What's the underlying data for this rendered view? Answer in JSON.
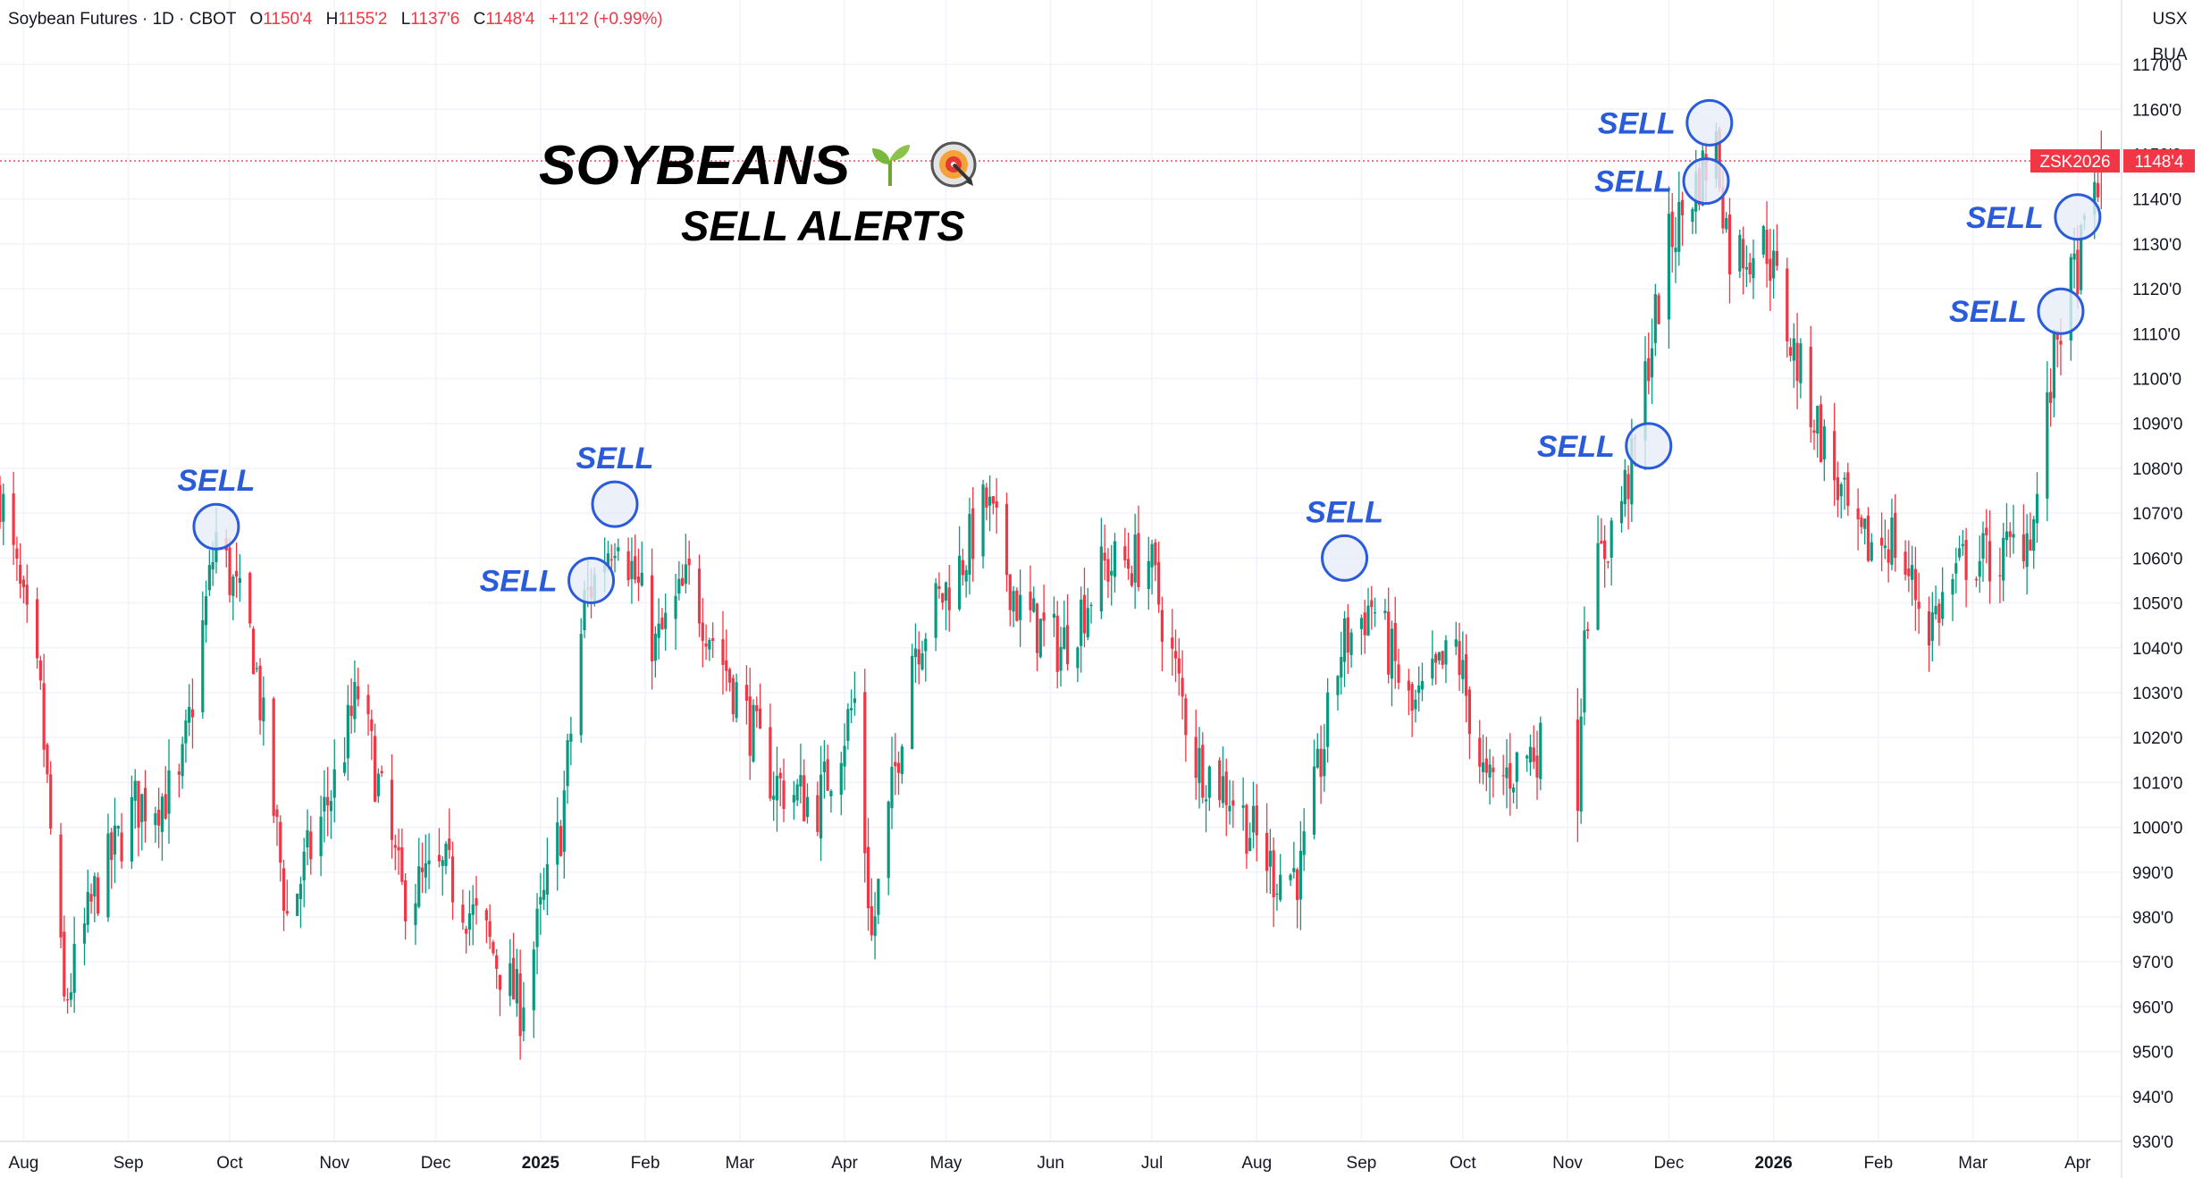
{
  "legend": {
    "name": "Soybean Futures · 1D · CBOT",
    "o_label": "O",
    "o_value": "1150'4",
    "h_label": "H",
    "h_value": "1155'2",
    "l_label": "L",
    "l_value": "1137'6",
    "c_label": "C",
    "c_value": "1148'4",
    "change": "+11'2 (+0.99%)"
  },
  "units": [
    "USX",
    "BUA"
  ],
  "title": {
    "line1": "SOYBEANS",
    "line2": "SELL ALERTS",
    "icons": [
      "seedling-icon",
      "target-icon"
    ]
  },
  "colors": {
    "up": "#089981",
    "down": "#f23645",
    "alert": "#2a5bdb",
    "circle_fill": "#e6ecf7"
  },
  "chart_data": {
    "type": "candlestick",
    "symbol": "ZSK2026",
    "last_price": 1148.5,
    "last_price_label": "1148'4",
    "ylim": [
      930,
      1175
    ],
    "y_ticks": [
      {
        "value": 1170,
        "label": "1170'0"
      },
      {
        "value": 1160,
        "label": "1160'0"
      },
      {
        "value": 1150,
        "label": "1150'0"
      },
      {
        "value": 1140,
        "label": "1140'0"
      },
      {
        "value": 1130,
        "label": "1130'0"
      },
      {
        "value": 1120,
        "label": "1120'0"
      },
      {
        "value": 1110,
        "label": "1110'0"
      },
      {
        "value": 1100,
        "label": "1100'0"
      },
      {
        "value": 1090,
        "label": "1090'0"
      },
      {
        "value": 1080,
        "label": "1080'0"
      },
      {
        "value": 1070,
        "label": "1070'0"
      },
      {
        "value": 1060,
        "label": "1060'0"
      },
      {
        "value": 1050,
        "label": "1050'0"
      },
      {
        "value": 1040,
        "label": "1040'0"
      },
      {
        "value": 1030,
        "label": "1030'0"
      },
      {
        "value": 1020,
        "label": "1020'0"
      },
      {
        "value": 1010,
        "label": "1010'0"
      },
      {
        "value": 1000,
        "label": "1000'0"
      },
      {
        "value": 990,
        "label": "990'0"
      },
      {
        "value": 980,
        "label": "980'0"
      },
      {
        "value": 970,
        "label": "970'0"
      },
      {
        "value": 960,
        "label": "960'0"
      },
      {
        "value": 950,
        "label": "950'0"
      },
      {
        "value": 940,
        "label": "940'0"
      },
      {
        "value": 930,
        "label": "930'0"
      }
    ],
    "x_range": [
      "2024-07-25",
      "2026-04-14"
    ],
    "x_ticks": [
      {
        "date": "2024-08-01",
        "label": "Aug",
        "bold": false
      },
      {
        "date": "2024-09-01",
        "label": "Sep",
        "bold": false
      },
      {
        "date": "2024-10-01",
        "label": "Oct",
        "bold": false
      },
      {
        "date": "2024-11-01",
        "label": "Nov",
        "bold": false
      },
      {
        "date": "2024-12-01",
        "label": "Dec",
        "bold": false
      },
      {
        "date": "2025-01-01",
        "label": "2025",
        "bold": true
      },
      {
        "date": "2025-02-01",
        "label": "Feb",
        "bold": false
      },
      {
        "date": "2025-03-01",
        "label": "Mar",
        "bold": false
      },
      {
        "date": "2025-04-01",
        "label": "Apr",
        "bold": false
      },
      {
        "date": "2025-05-01",
        "label": "May",
        "bold": false
      },
      {
        "date": "2025-06-01",
        "label": "Jun",
        "bold": false
      },
      {
        "date": "2025-07-01",
        "label": "Jul",
        "bold": false
      },
      {
        "date": "2025-08-01",
        "label": "Aug",
        "bold": false
      },
      {
        "date": "2025-09-01",
        "label": "Sep",
        "bold": false
      },
      {
        "date": "2025-10-01",
        "label": "Oct",
        "bold": false
      },
      {
        "date": "2025-11-01",
        "label": "Nov",
        "bold": false
      },
      {
        "date": "2025-12-01",
        "label": "Dec",
        "bold": false
      },
      {
        "date": "2026-01-01",
        "label": "2026",
        "bold": true
      },
      {
        "date": "2026-02-01",
        "label": "Feb",
        "bold": false
      },
      {
        "date": "2026-03-01",
        "label": "Mar",
        "bold": false
      },
      {
        "date": "2026-04-01",
        "label": "Apr",
        "bold": false
      }
    ],
    "grid": true,
    "price_path": [
      [
        "2024-07-25",
        1075
      ],
      [
        "2024-08-06",
        1028
      ],
      [
        "2024-08-13",
        960
      ],
      [
        "2024-08-22",
        985
      ],
      [
        "2024-09-03",
        1005
      ],
      [
        "2024-09-16",
        1008
      ],
      [
        "2024-09-27",
        1065
      ],
      [
        "2024-10-08",
        1040
      ],
      [
        "2024-10-18",
        980
      ],
      [
        "2024-11-01",
        1010
      ],
      [
        "2024-11-08",
        1030
      ],
      [
        "2024-11-21",
        985
      ],
      [
        "2024-12-04",
        990
      ],
      [
        "2024-12-16",
        975
      ],
      [
        "2024-12-26",
        960
      ],
      [
        "2025-01-07",
        1000
      ],
      [
        "2025-01-14",
        1050
      ],
      [
        "2025-01-24",
        1068
      ],
      [
        "2025-02-04",
        1040
      ],
      [
        "2025-02-14",
        1055
      ],
      [
        "2025-02-28",
        1030
      ],
      [
        "2025-03-11",
        1010
      ],
      [
        "2025-03-24",
        1005
      ],
      [
        "2025-04-04",
        1028
      ],
      [
        "2025-04-09",
        975
      ],
      [
        "2025-04-21",
        1040
      ],
      [
        "2025-05-05",
        1058
      ],
      [
        "2025-05-13",
        1072
      ],
      [
        "2025-05-23",
        1048
      ],
      [
        "2025-06-04",
        1040
      ],
      [
        "2025-06-17",
        1058
      ],
      [
        "2025-06-30",
        1060
      ],
      [
        "2025-07-14",
        1015
      ],
      [
        "2025-07-24",
        1008
      ],
      [
        "2025-08-06",
        990
      ],
      [
        "2025-08-14",
        990
      ],
      [
        "2025-08-26",
        1040
      ],
      [
        "2025-09-04",
        1050
      ],
      [
        "2025-09-16",
        1025
      ],
      [
        "2025-09-29",
        1040
      ],
      [
        "2025-10-08",
        1008
      ],
      [
        "2025-10-23",
        1018
      ],
      [
        "2025-11-04",
        1010
      ],
      [
        "2025-11-06",
        1048
      ],
      [
        "2025-11-12",
        1062
      ],
      [
        "2025-11-20",
        1080
      ],
      [
        "2025-11-25",
        1105
      ],
      [
        "2025-12-01",
        1130
      ],
      [
        "2025-12-10",
        1145
      ],
      [
        "2025-12-15",
        1152
      ],
      [
        "2025-12-19",
        1128
      ],
      [
        "2025-12-30",
        1130
      ],
      [
        "2026-01-06",
        1108
      ],
      [
        "2026-01-16",
        1085
      ],
      [
        "2026-01-26",
        1062
      ],
      [
        "2026-02-05",
        1065
      ],
      [
        "2026-02-16",
        1045
      ],
      [
        "2026-02-27",
        1060
      ],
      [
        "2026-03-10",
        1060
      ],
      [
        "2026-03-19",
        1068
      ],
      [
        "2026-03-26",
        1110
      ],
      [
        "2026-04-02",
        1128
      ],
      [
        "2026-04-08",
        1148.5
      ]
    ],
    "gap": {
      "start": "2025-10-24",
      "end": "2025-11-04"
    },
    "annotations": [
      {
        "date": "2024-09-27",
        "price": 1067,
        "text": "SELL",
        "side": "above"
      },
      {
        "date": "2025-01-16",
        "price": 1055,
        "text": "SELL",
        "side": "left"
      },
      {
        "date": "2025-01-23",
        "price": 1072,
        "text": "SELL",
        "side": "above"
      },
      {
        "date": "2025-08-27",
        "price": 1060,
        "text": "SELL",
        "side": "above"
      },
      {
        "date": "2025-11-25",
        "price": 1085,
        "text": "SELL",
        "side": "left"
      },
      {
        "date": "2025-12-12",
        "price": 1144,
        "text": "SELL",
        "side": "left"
      },
      {
        "date": "2025-12-13",
        "price": 1157,
        "text": "SELL",
        "side": "left"
      },
      {
        "date": "2026-03-27",
        "price": 1115,
        "text": "SELL",
        "side": "left"
      },
      {
        "date": "2026-04-01",
        "price": 1136,
        "text": "SELL",
        "side": "left"
      }
    ]
  }
}
